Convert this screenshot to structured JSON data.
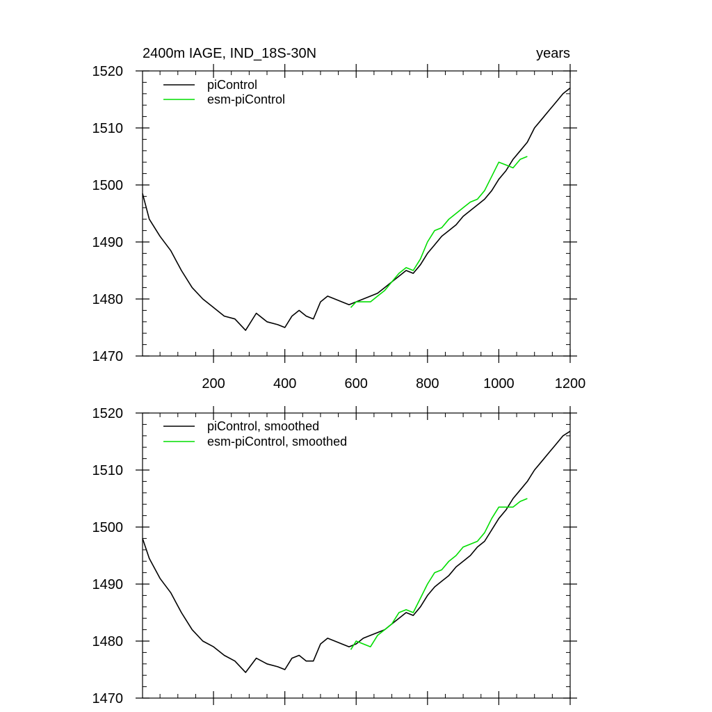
{
  "chart_data": [
    {
      "type": "line",
      "title": "2400m IAGE, IND_18S-30N",
      "units_label": "years",
      "xlim": [
        1,
        1200
      ],
      "ylim": [
        1470,
        1520
      ],
      "xticks": [
        200,
        400,
        600,
        800,
        1000,
        1200
      ],
      "yticks": [
        1470,
        1480,
        1490,
        1500,
        1510,
        1520
      ],
      "xtick_labels": [
        "200",
        "400",
        "600",
        "800",
        "1000",
        "1200"
      ],
      "ytick_labels": [
        "1470",
        "1480",
        "1490",
        "1500",
        "1510",
        "1520"
      ],
      "legend": "top-left",
      "series": [
        {
          "name": "piControl",
          "color": "#000000",
          "x": [
            1,
            20,
            50,
            80,
            110,
            140,
            170,
            200,
            230,
            260,
            290,
            320,
            350,
            380,
            400,
            420,
            440,
            460,
            480,
            500,
            520,
            540,
            560,
            580,
            600,
            620,
            640,
            660,
            680,
            700,
            720,
            740,
            760,
            780,
            800,
            820,
            840,
            860,
            880,
            900,
            920,
            940,
            960,
            980,
            1000,
            1020,
            1040,
            1060,
            1080,
            1100,
            1120,
            1140,
            1160,
            1180,
            1200
          ],
          "y": [
            1498.5,
            1494,
            1491,
            1488.5,
            1485,
            1482,
            1480,
            1478.5,
            1477,
            1476.5,
            1474.5,
            1477.5,
            1476,
            1475.5,
            1475,
            1477,
            1478,
            1477,
            1476.5,
            1479.5,
            1480.5,
            1480,
            1479.5,
            1479,
            1479.5,
            1480,
            1480.5,
            1481,
            1482,
            1483,
            1484,
            1485,
            1484.5,
            1486,
            1488,
            1489.5,
            1491,
            1492,
            1493,
            1494.5,
            1495.5,
            1496.5,
            1497.5,
            1499,
            1501,
            1502.5,
            1504.5,
            1506,
            1507.5,
            1510,
            1511.5,
            1513,
            1514.5,
            1516,
            1517
          ]
        },
        {
          "name": "esm-piControl",
          "color": "#00dd00",
          "x": [
            585,
            600,
            620,
            640,
            660,
            680,
            700,
            720,
            740,
            760,
            780,
            800,
            820,
            840,
            860,
            880,
            900,
            920,
            940,
            960,
            980,
            1000,
            1020,
            1040,
            1060,
            1080
          ],
          "y": [
            1478.5,
            1479.5,
            1479.5,
            1479.5,
            1480.5,
            1481.5,
            1483,
            1484.5,
            1485.5,
            1485,
            1487,
            1490,
            1492,
            1492.5,
            1494,
            1495,
            1496,
            1497,
            1497.5,
            1499,
            1501.5,
            1504,
            1503.5,
            1503,
            1504.5,
            1505
          ]
        }
      ]
    },
    {
      "type": "line",
      "title": "",
      "xlim": [
        1,
        1200
      ],
      "ylim": [
        1470,
        1520
      ],
      "xticks": [
        200,
        400,
        600,
        800,
        1000,
        1200
      ],
      "yticks": [
        1470,
        1480,
        1490,
        1500,
        1510,
        1520
      ],
      "ytick_labels": [
        "1470",
        "1480",
        "1490",
        "1500",
        "1510",
        "1520"
      ],
      "legend": "top-left",
      "series": [
        {
          "name": "piControl, smoothed",
          "color": "#000000",
          "x": [
            1,
            20,
            50,
            80,
            110,
            140,
            170,
            200,
            230,
            260,
            290,
            320,
            350,
            380,
            400,
            420,
            440,
            460,
            480,
            500,
            520,
            540,
            560,
            580,
            600,
            620,
            640,
            660,
            680,
            700,
            720,
            740,
            760,
            780,
            800,
            820,
            840,
            860,
            880,
            900,
            920,
            940,
            960,
            980,
            1000,
            1020,
            1040,
            1060,
            1080,
            1100,
            1120,
            1140,
            1160,
            1180,
            1200
          ],
          "y": [
            1498,
            1494.5,
            1491,
            1488.5,
            1485,
            1482,
            1480,
            1479,
            1477.5,
            1476.5,
            1474.5,
            1477,
            1476,
            1475.5,
            1475,
            1477,
            1477.5,
            1476.5,
            1476.5,
            1479.5,
            1480.5,
            1480,
            1479.5,
            1479,
            1479.5,
            1480.5,
            1481,
            1481.5,
            1482,
            1483,
            1484,
            1485,
            1484.5,
            1486,
            1488,
            1489.5,
            1490.5,
            1491.5,
            1493,
            1494,
            1495,
            1496.5,
            1497.5,
            1499.5,
            1501.5,
            1503,
            1505,
            1506.5,
            1508,
            1510,
            1511.5,
            1513,
            1514.5,
            1516,
            1516.8
          ]
        },
        {
          "name": "esm-piControl, smoothed",
          "color": "#00dd00",
          "x": [
            585,
            600,
            620,
            640,
            660,
            680,
            700,
            720,
            740,
            760,
            780,
            800,
            820,
            840,
            860,
            880,
            900,
            920,
            940,
            960,
            980,
            1000,
            1020,
            1040,
            1060,
            1080
          ],
          "y": [
            1478.5,
            1480,
            1479.5,
            1479,
            1481,
            1482,
            1483,
            1485,
            1485.5,
            1485,
            1487.5,
            1490,
            1492,
            1492.5,
            1494,
            1495,
            1496.5,
            1497,
            1497.5,
            1499,
            1501.5,
            1503.5,
            1503.5,
            1503.5,
            1504.5,
            1505
          ]
        }
      ]
    }
  ]
}
